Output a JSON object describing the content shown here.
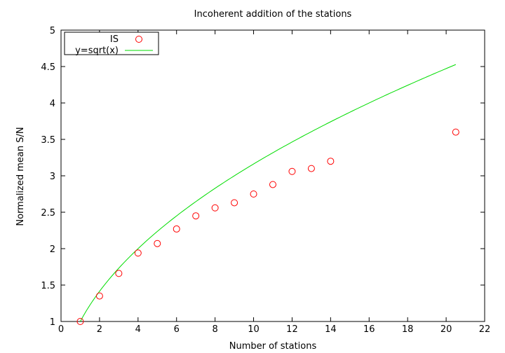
{
  "chart_data": {
    "type": "scatter",
    "title": "Incoherent addition of the stations",
    "xlabel": "Number of stations",
    "ylabel": "Normalized mean S/N",
    "xlim": [
      0,
      22
    ],
    "ylim": [
      1,
      5
    ],
    "xticks": [
      0,
      2,
      4,
      6,
      8,
      10,
      12,
      14,
      16,
      18,
      20,
      22
    ],
    "yticks": [
      1,
      1.5,
      2,
      2.5,
      3,
      3.5,
      4,
      4.5,
      5
    ],
    "xtick_labels": [
      "0",
      "2",
      "4",
      "6",
      "8",
      "10",
      "12",
      "14",
      "16",
      "18",
      "20",
      "22"
    ],
    "ytick_labels": [
      "1",
      "1.5",
      "2",
      "2.5",
      "3",
      "3.5",
      "4",
      "4.5",
      "5"
    ],
    "grid": false,
    "legend_position": "top-left",
    "series": [
      {
        "name": "IS",
        "style": "points",
        "marker": "open-circle",
        "color": "#ff0000",
        "x": [
          1,
          2,
          3,
          4,
          5,
          6,
          7,
          8,
          9,
          10,
          11,
          12,
          13,
          14,
          20.5
        ],
        "y": [
          1.0,
          1.35,
          1.66,
          1.94,
          2.07,
          2.27,
          2.45,
          2.56,
          2.63,
          2.75,
          2.88,
          3.06,
          3.1,
          3.2,
          3.6
        ]
      },
      {
        "name": "y=sqrt(x)",
        "style": "line",
        "function": "sqrt",
        "color": "#00dd00",
        "domain": [
          1,
          20.5
        ]
      }
    ]
  }
}
